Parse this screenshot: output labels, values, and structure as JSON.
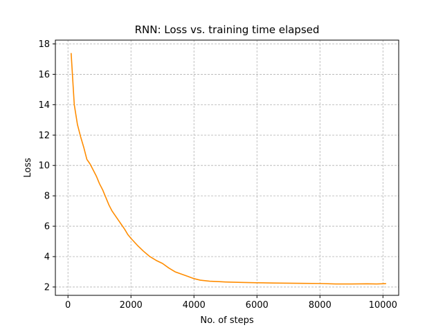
{
  "chart_data": {
    "type": "line",
    "title": "RNN: Loss vs. training time elapsed",
    "xlabel": "No. of steps",
    "ylabel": "Loss",
    "xlim": [
      -400,
      10500
    ],
    "ylim": [
      1.45,
      18.25
    ],
    "xticks": [
      0,
      2000,
      4000,
      6000,
      8000,
      10000
    ],
    "yticks": [
      2,
      4,
      6,
      8,
      10,
      12,
      14,
      16,
      18
    ],
    "grid": true,
    "grid_style": "dashed",
    "series": [
      {
        "color": "#ff8c00",
        "x": [
          100,
          200,
          300,
          400,
          500,
          600,
          700,
          800,
          900,
          1000,
          1100,
          1200,
          1300,
          1400,
          1500,
          1600,
          1700,
          1800,
          1900,
          2000,
          2200,
          2400,
          2600,
          2800,
          3000,
          3200,
          3400,
          3600,
          3800,
          4000,
          4200,
          4500,
          4800,
          5000,
          5500,
          6000,
          6500,
          7000,
          7500,
          8000,
          8500,
          9000,
          9500,
          9800,
          10100
        ],
        "y": [
          17.4,
          14.0,
          12.7,
          11.9,
          11.2,
          10.4,
          10.1,
          9.7,
          9.3,
          8.8,
          8.4,
          7.9,
          7.4,
          7.0,
          6.7,
          6.4,
          6.1,
          5.8,
          5.45,
          5.2,
          4.75,
          4.35,
          4.0,
          3.75,
          3.55,
          3.25,
          3.0,
          2.85,
          2.7,
          2.55,
          2.45,
          2.38,
          2.35,
          2.33,
          2.3,
          2.28,
          2.26,
          2.25,
          2.24,
          2.23,
          2.2,
          2.2,
          2.21,
          2.2,
          2.22
        ]
      }
    ]
  }
}
